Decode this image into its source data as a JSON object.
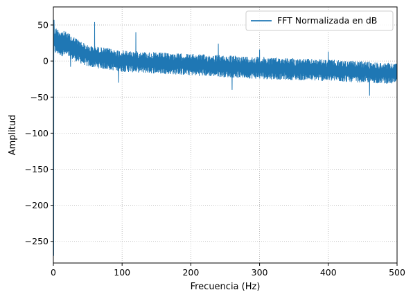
{
  "chart_data": {
    "type": "line",
    "title": "",
    "xlabel": "Frecuencia (Hz)",
    "ylabel": "Amplitud",
    "xlim": [
      0,
      500
    ],
    "ylim": [
      -280,
      75
    ],
    "xticks": [
      0,
      100,
      200,
      300,
      400,
      500
    ],
    "yticks": [
      50,
      0,
      -50,
      -100,
      -150,
      -200,
      -250
    ],
    "xtick_labels": [
      "0",
      "100",
      "200",
      "300",
      "400",
      "500"
    ],
    "ytick_labels": [
      "50",
      "0",
      "−50",
      "−100",
      "−150",
      "−200",
      "−250"
    ],
    "grid": "dotted",
    "legend": "top-right",
    "series": [
      {
        "name": "FFT Normalizada en dB",
        "color": "#1f77b4",
        "noise_floor_upper": [
          [
            0,
            48
          ],
          [
            20,
            40
          ],
          [
            50,
            22
          ],
          [
            100,
            15
          ],
          [
            150,
            12
          ],
          [
            200,
            10
          ],
          [
            300,
            6
          ],
          [
            400,
            2
          ],
          [
            500,
            -3
          ]
        ],
        "noise_floor_lower": [
          [
            0,
            10
          ],
          [
            20,
            5
          ],
          [
            50,
            -8
          ],
          [
            100,
            -15
          ],
          [
            200,
            -20
          ],
          [
            300,
            -25
          ],
          [
            400,
            -28
          ],
          [
            500,
            -32
          ]
        ],
        "peaks": [
          {
            "x": 1,
            "y": 57
          },
          {
            "x": 60,
            "y": 54
          },
          {
            "x": 120,
            "y": 40
          },
          {
            "x": 240,
            "y": 24
          },
          {
            "x": 300,
            "y": 16
          },
          {
            "x": 400,
            "y": 13
          }
        ],
        "dips": [
          {
            "x": 0.5,
            "y": -270
          },
          {
            "x": 25,
            "y": -8
          },
          {
            "x": 95,
            "y": -30
          },
          {
            "x": 260,
            "y": -40
          },
          {
            "x": 400,
            "y": -42
          },
          {
            "x": 460,
            "y": -48
          }
        ]
      }
    ]
  }
}
